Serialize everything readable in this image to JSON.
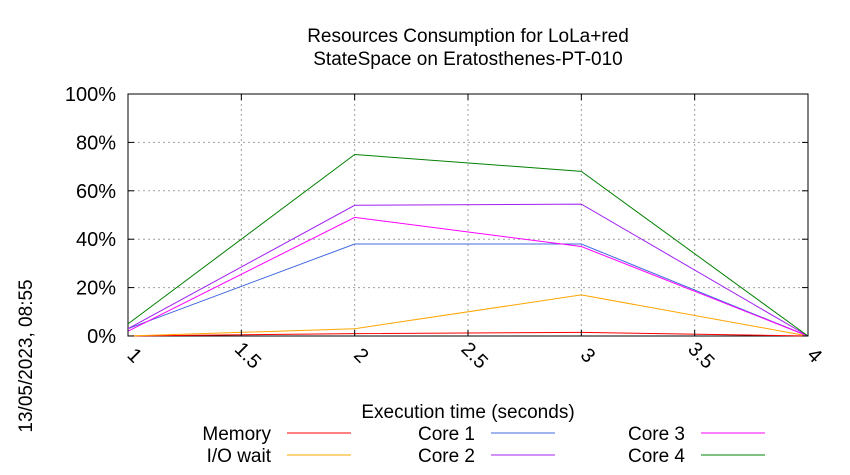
{
  "chart_data": {
    "type": "line",
    "title": [
      "Resources Consumption for LoLa+red",
      "StateSpace on Eratosthenes-PT-010"
    ],
    "xlabel": "Execution time (seconds)",
    "ylabel": "",
    "side_label": "13/05/2023, 08:55",
    "xlim": [
      1,
      4
    ],
    "ylim": [
      0,
      100
    ],
    "xticks": [
      1,
      1.5,
      2,
      2.5,
      3,
      3.5,
      4
    ],
    "xtick_labels": [
      "1",
      "1.5",
      "2",
      "2.5",
      "3",
      "3.5",
      "4"
    ],
    "yticks": [
      0,
      20,
      40,
      60,
      80,
      100
    ],
    "ytick_labels": [
      "0%",
      "20%",
      "40%",
      "60%",
      "80%",
      "100%"
    ],
    "grid": true,
    "legend_position": "bottom",
    "x": [
      1,
      2,
      3,
      4
    ],
    "series": [
      {
        "name": "Memory",
        "color": "#ff0000",
        "values": [
          0,
          1,
          1.5,
          0
        ]
      },
      {
        "name": "I/O wait",
        "color": "#ffa500",
        "values": [
          0,
          3,
          17,
          0
        ]
      },
      {
        "name": "Core 1",
        "color": "#4169e1",
        "values": [
          3,
          38,
          38,
          0
        ]
      },
      {
        "name": "Core 2",
        "color": "#a020f0",
        "values": [
          3,
          54,
          54.5,
          0
        ]
      },
      {
        "name": "Core 3",
        "color": "#ff00ff",
        "values": [
          2,
          49,
          37,
          0
        ]
      },
      {
        "name": "Core 4",
        "color": "#008000",
        "values": [
          5,
          75,
          68,
          0
        ]
      }
    ]
  }
}
